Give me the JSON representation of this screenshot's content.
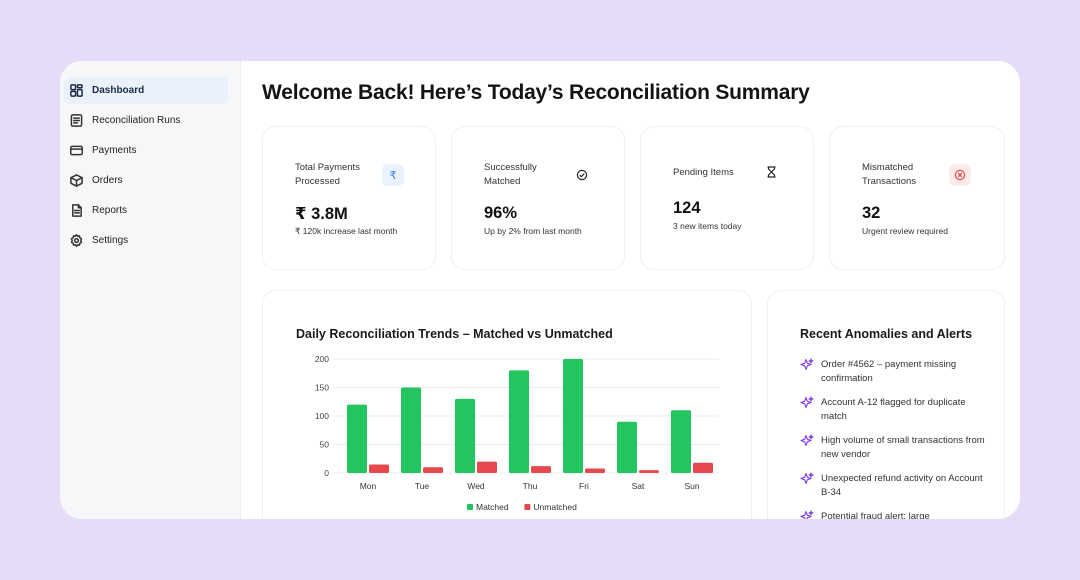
{
  "sidebar": {
    "items": [
      {
        "label": "Dashboard",
        "icon": "dashboard-grid-icon",
        "active": true
      },
      {
        "label": "Reconciliation Runs",
        "icon": "list-doc-icon",
        "active": false
      },
      {
        "label": "Payments",
        "icon": "card-icon",
        "active": false
      },
      {
        "label": "Orders",
        "icon": "box-icon",
        "active": false
      },
      {
        "label": "Reports",
        "icon": "file-icon",
        "active": false
      },
      {
        "label": "Settings",
        "icon": "gear-icon",
        "active": false
      }
    ]
  },
  "header": {
    "title": "Welcome Back! Here’s Today’s Reconciliation Summary"
  },
  "stats": [
    {
      "label": "Total Payments Processed",
      "value": "₹ 3.8M",
      "sub": "₹ 120k increase last month",
      "icon": "rupee-icon",
      "badge_color": "#eaf2fd",
      "icon_color": "#3b82f6"
    },
    {
      "label": "Successfully Matched",
      "value": "96%",
      "sub": "Up by 2% from last month",
      "icon": "check-circle-icon",
      "badge_color": "#ffffff",
      "icon_color": "#222222"
    },
    {
      "label": "Pending Items",
      "value": "124",
      "sub": "3 new items today",
      "icon": "hourglass-icon",
      "badge_color": "#ffffff",
      "icon_color": "#222222"
    },
    {
      "label": "Mismatched Transactions",
      "value": "32",
      "sub": "Urgent review required",
      "icon": "x-circle-icon",
      "badge_color": "#fdeaea",
      "icon_color": "#e5484d"
    }
  ],
  "chart_data": {
    "type": "bar",
    "title": "Daily Reconciliation Trends – Matched vs Unmatched",
    "categories": [
      "Mon",
      "Tue",
      "Wed",
      "Thu",
      "Fri",
      "Sat",
      "Sun"
    ],
    "series": [
      {
        "name": "Matched",
        "color": "#22c55e",
        "values": [
          120,
          150,
          130,
          180,
          200,
          90,
          110
        ]
      },
      {
        "name": "Unmatched",
        "color": "#e5484d",
        "values": [
          15,
          10,
          20,
          12,
          8,
          5,
          18
        ]
      }
    ],
    "ylim": [
      0,
      200
    ],
    "yticks": [
      0,
      50,
      100,
      150,
      200
    ],
    "grid": true,
    "legend": "bottom-center"
  },
  "alerts": {
    "title": "Recent Anomalies and Alerts",
    "items": [
      "Order #4562 – payment missing confirmation",
      "Account A-12 flagged for duplicate match",
      "High volume of small transactions from new vendor",
      "Unexpected refund activity on Account B-34",
      "Potential fraud alert: large"
    ],
    "icon": "sparkle-icon",
    "icon_color": "#7c3aed"
  }
}
